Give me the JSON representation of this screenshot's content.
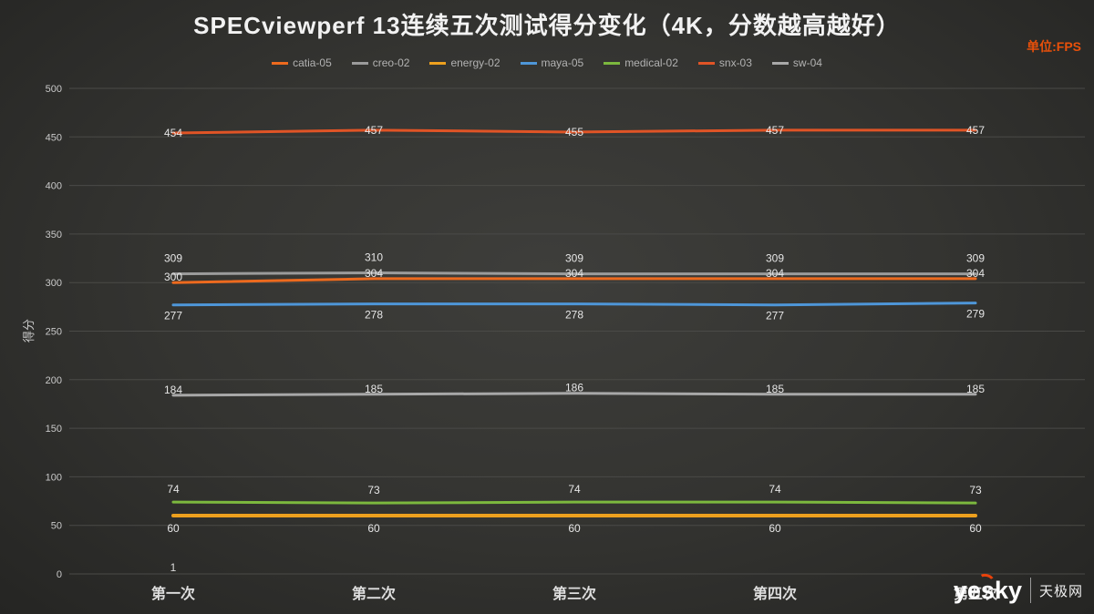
{
  "page": {
    "title": "SPECviewperf 13连续五次测试得分变化（4K，分数越高越好）",
    "unit_label": "单位:FPS",
    "watermark": {
      "brand": "yesky",
      "site": "天极网"
    },
    "colors": {
      "accent": "#e8500a",
      "background": "#333331",
      "grid": "#4a4a47"
    }
  },
  "chart_data": {
    "type": "line",
    "title": "SPECviewperf 13连续五次测试得分变化（4K，分数越高越好）",
    "xlabel": "",
    "ylabel": "得分",
    "unit": "FPS",
    "grid": true,
    "legend_position": "top",
    "ylim": [
      0,
      500
    ],
    "ytick_step": 50,
    "categories": [
      "第一次",
      "第二次",
      "第三次",
      "第四次",
      "第五次"
    ],
    "series": [
      {
        "name": "catia-05",
        "color": "#ed6a1e",
        "width": 3,
        "label_dy": -2,
        "values": [
          300,
          304,
          304,
          304,
          304
        ]
      },
      {
        "name": "creo-02",
        "color": "#9b9b9b",
        "width": 3,
        "label_dy": -13,
        "values": [
          309,
          310,
          309,
          309,
          309
        ]
      },
      {
        "name": "energy-02",
        "color": "#eda01e",
        "width": 4,
        "label_dy": 18,
        "values": [
          60,
          60,
          60,
          60,
          60
        ]
      },
      {
        "name": "maya-05",
        "color": "#4e96d8",
        "width": 3,
        "label_dy": 16,
        "values": [
          277,
          278,
          278,
          277,
          279
        ]
      },
      {
        "name": "medical-02",
        "color": "#7cb83e",
        "width": 3,
        "label_dy": -10,
        "values": [
          74,
          73,
          74,
          74,
          73
        ]
      },
      {
        "name": "snx-03",
        "color": "#e05426",
        "width": 3,
        "label_dy": 4,
        "values": [
          454,
          457,
          455,
          457,
          457
        ]
      },
      {
        "name": "sw-04",
        "color": "#a8a8a8",
        "width": 3,
        "label_dy": -2,
        "values": [
          184,
          185,
          186,
          185,
          185
        ]
      }
    ],
    "stray_label": "1"
  }
}
